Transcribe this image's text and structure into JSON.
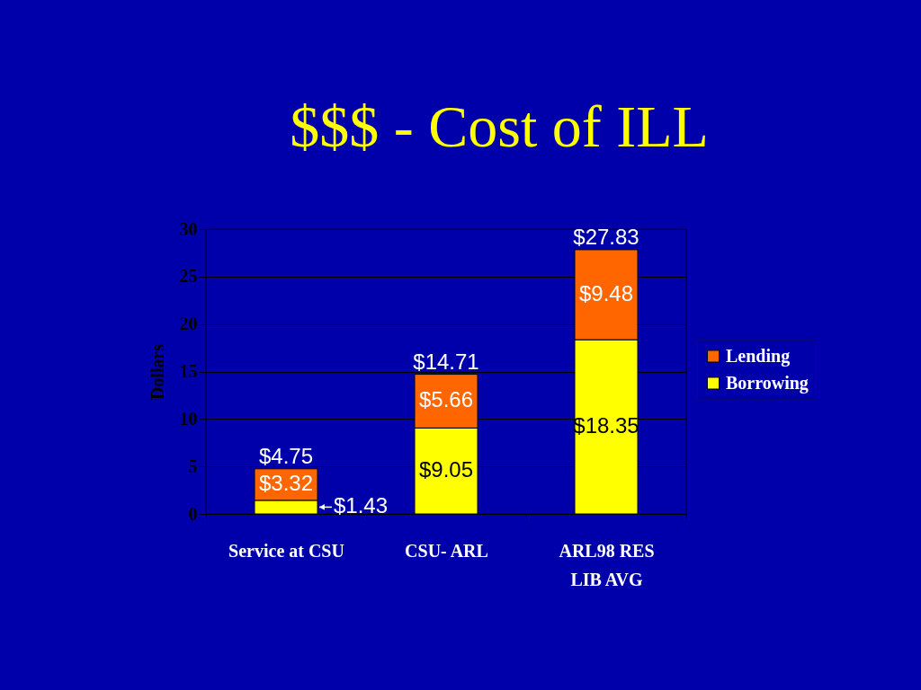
{
  "chart_data": {
    "type": "bar",
    "title": "$$$ - Cost of ILL",
    "ylabel": "Dollars",
    "categories": [
      "Service at CSU",
      "CSU- ARL",
      "ARL98 RES LIB AVG"
    ],
    "stacked": true,
    "series": [
      {
        "name": "Borrowing",
        "color": "#ffff00",
        "values": [
          1.43,
          9.05,
          18.35
        ],
        "value_labels": [
          "$1.43",
          "$9.05",
          "$18.35"
        ]
      },
      {
        "name": "Lending",
        "color": "#ff6600",
        "values": [
          3.32,
          5.66,
          9.48
        ],
        "value_labels": [
          "$3.32",
          "$5.66",
          "$9.48"
        ]
      }
    ],
    "totals": [
      "$4.75",
      "$14.71",
      "$27.83"
    ],
    "ylim": [
      0,
      30
    ],
    "yticks": [
      0,
      5,
      10,
      15,
      20,
      25,
      30
    ],
    "grid": "y",
    "legend": "right"
  }
}
